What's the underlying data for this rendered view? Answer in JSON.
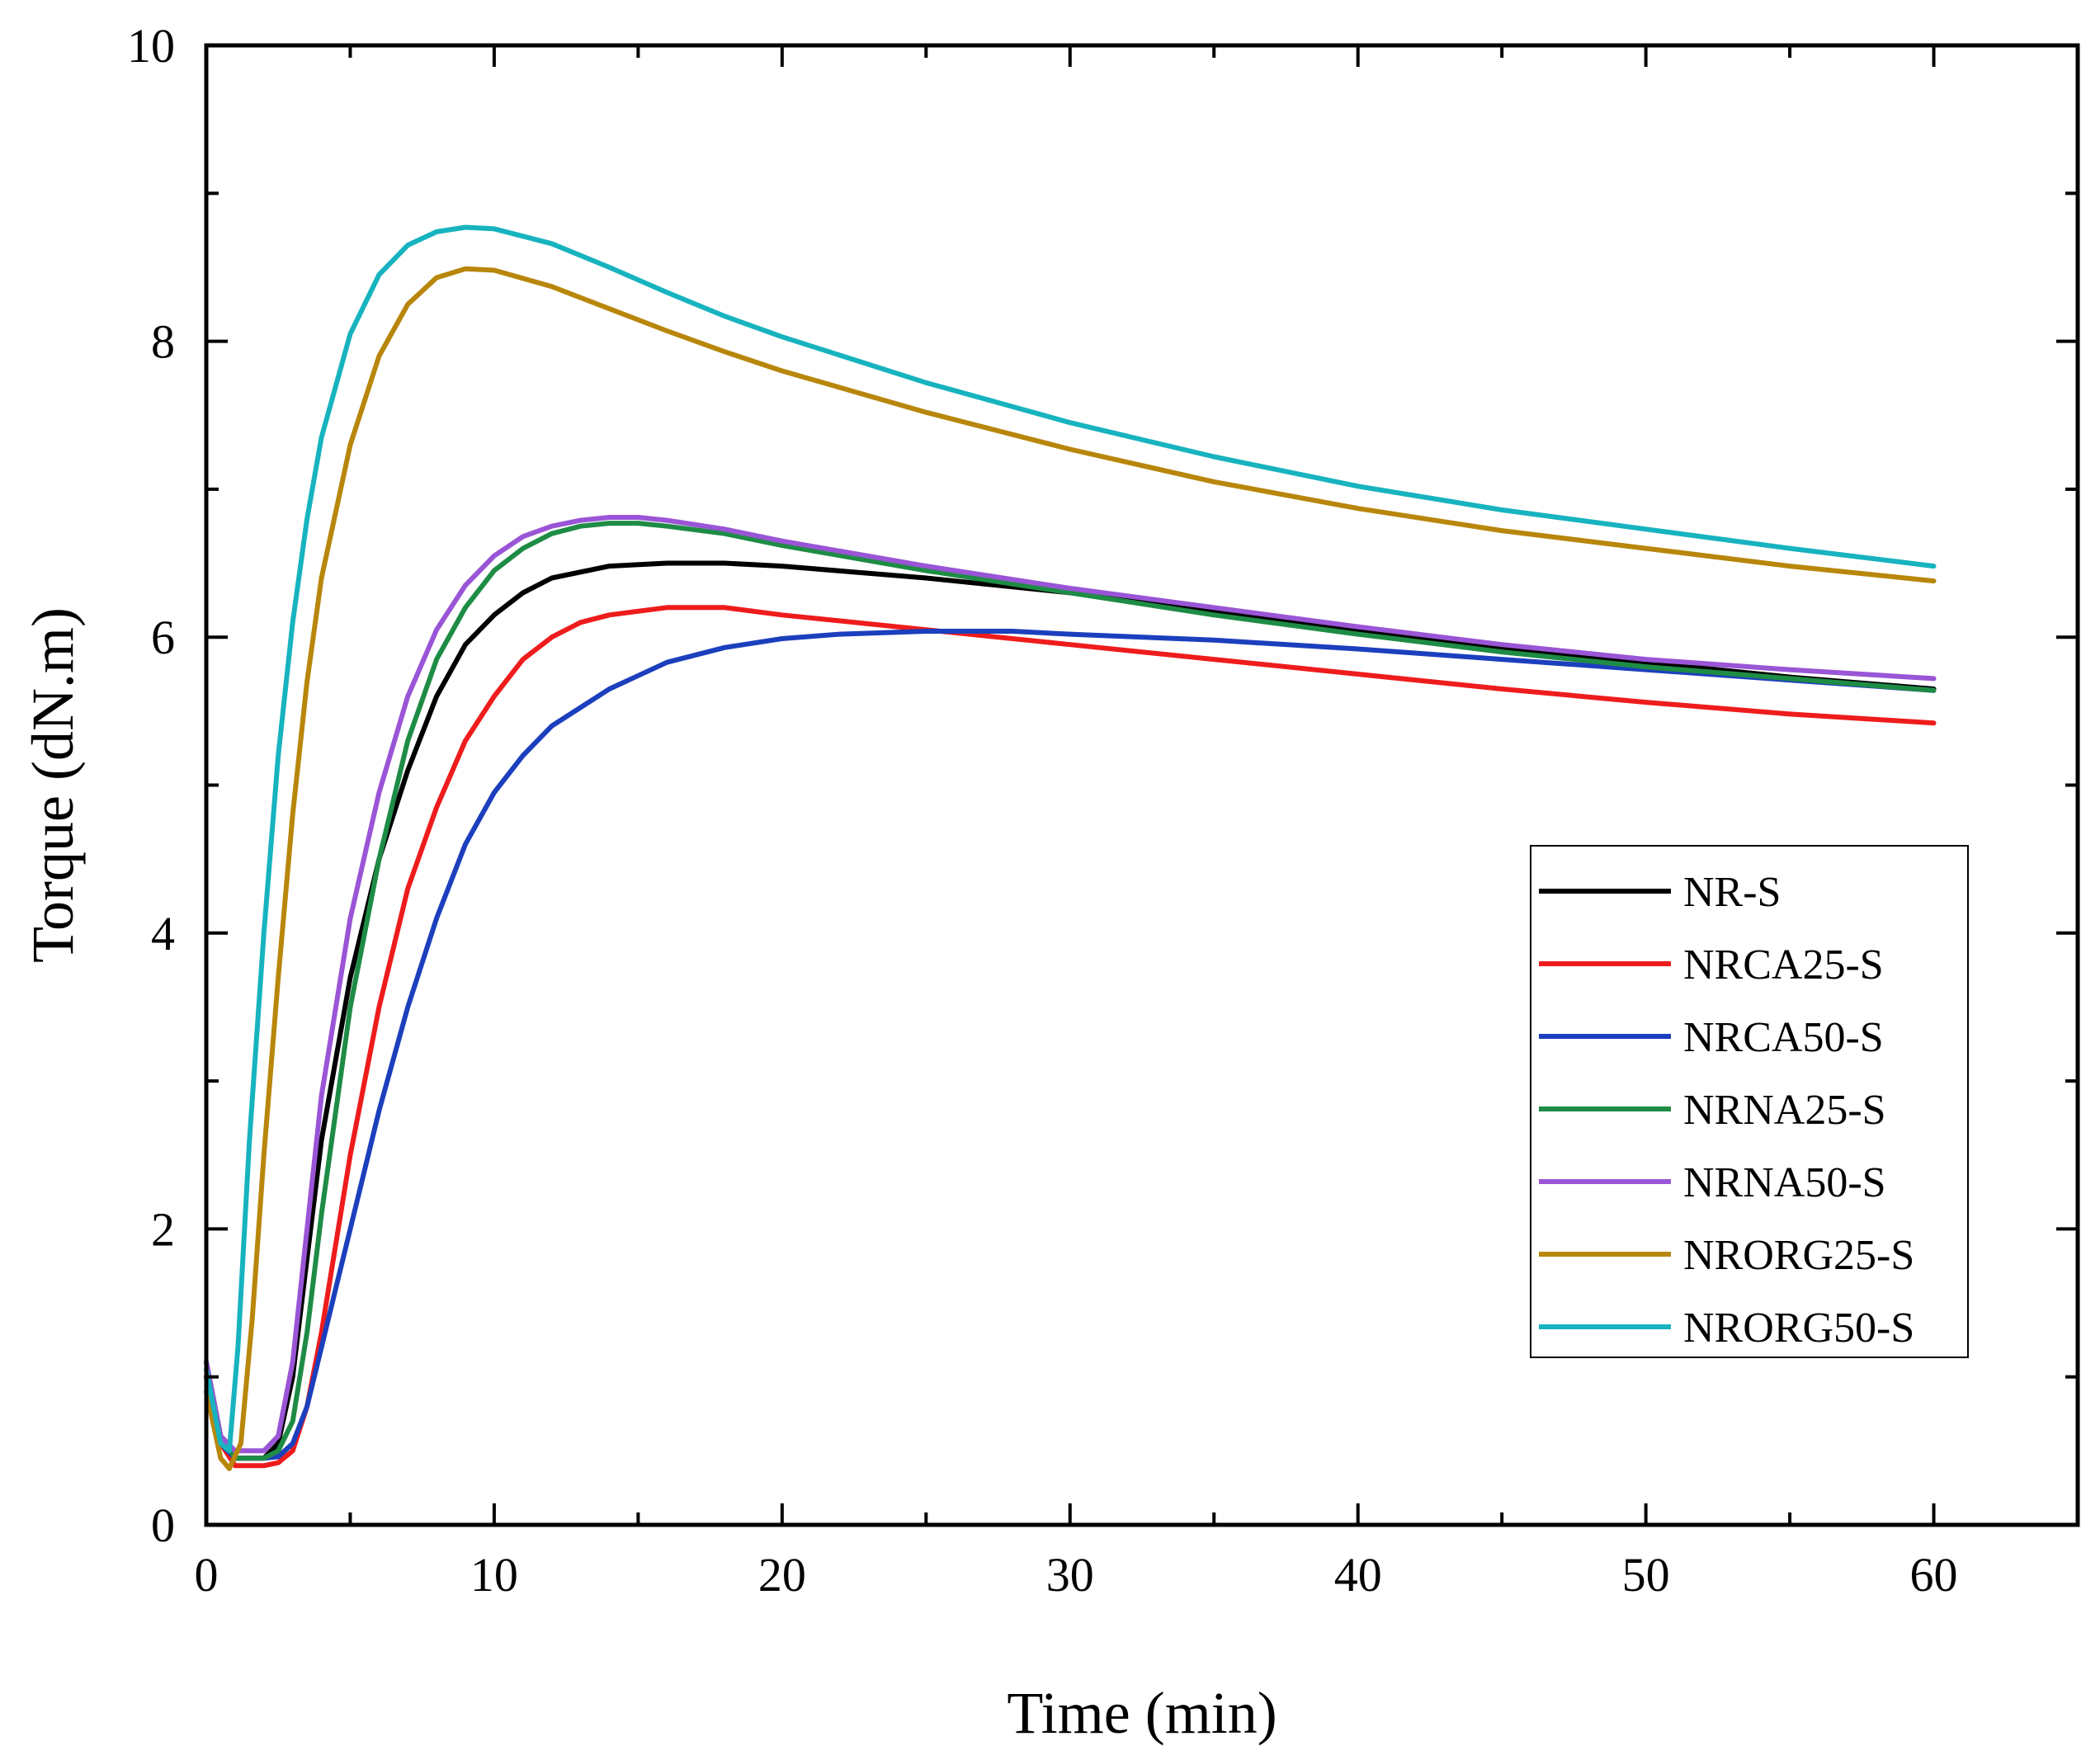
{
  "chart_data": {
    "type": "line",
    "xlabel": "Time (min)",
    "ylabel": "Torque (dN.m)",
    "xlim": [
      0,
      65
    ],
    "ylim": [
      0,
      10
    ],
    "xticks": [
      "0",
      "10",
      "20",
      "30",
      "40",
      "50",
      "60"
    ],
    "yticks": [
      "0",
      "2",
      "4",
      "6",
      "8",
      "10"
    ],
    "grid": false,
    "legend_position": "lower-right",
    "series": [
      {
        "name": "NR-S",
        "color": "#000000",
        "points": [
          [
            0,
            1.1
          ],
          [
            0.5,
            0.6
          ],
          [
            1,
            0.45
          ],
          [
            2,
            0.45
          ],
          [
            2.5,
            0.55
          ],
          [
            3,
            1.0
          ],
          [
            3.5,
            1.8
          ],
          [
            4,
            2.6
          ],
          [
            5,
            3.7
          ],
          [
            6,
            4.5
          ],
          [
            7,
            5.1
          ],
          [
            8,
            5.6
          ],
          [
            9,
            5.95
          ],
          [
            10,
            6.15
          ],
          [
            11,
            6.3
          ],
          [
            12,
            6.4
          ],
          [
            14,
            6.48
          ],
          [
            16,
            6.5
          ],
          [
            18,
            6.5
          ],
          [
            20,
            6.48
          ],
          [
            25,
            6.4
          ],
          [
            30,
            6.3
          ],
          [
            35,
            6.18
          ],
          [
            40,
            6.05
          ],
          [
            45,
            5.93
          ],
          [
            50,
            5.83
          ],
          [
            55,
            5.73
          ],
          [
            60,
            5.65
          ]
        ]
      },
      {
        "name": "NRCA25-S",
        "color": "#ee1c1c",
        "points": [
          [
            0,
            1.0
          ],
          [
            0.5,
            0.55
          ],
          [
            1,
            0.4
          ],
          [
            2,
            0.4
          ],
          [
            2.5,
            0.42
          ],
          [
            3,
            0.5
          ],
          [
            3.5,
            0.8
          ],
          [
            4,
            1.3
          ],
          [
            4.5,
            1.9
          ],
          [
            5,
            2.5
          ],
          [
            6,
            3.5
          ],
          [
            7,
            4.3
          ],
          [
            8,
            4.85
          ],
          [
            9,
            5.3
          ],
          [
            10,
            5.6
          ],
          [
            11,
            5.85
          ],
          [
            12,
            6.0
          ],
          [
            13,
            6.1
          ],
          [
            14,
            6.15
          ],
          [
            16,
            6.2
          ],
          [
            18,
            6.2
          ],
          [
            20,
            6.15
          ],
          [
            25,
            6.05
          ],
          [
            30,
            5.95
          ],
          [
            35,
            5.85
          ],
          [
            40,
            5.75
          ],
          [
            45,
            5.65
          ],
          [
            50,
            5.56
          ],
          [
            55,
            5.48
          ],
          [
            60,
            5.42
          ]
        ]
      },
      {
        "name": "NRCA50-S",
        "color": "#1c3fbd",
        "points": [
          [
            0,
            1.0
          ],
          [
            0.5,
            0.55
          ],
          [
            1,
            0.45
          ],
          [
            2,
            0.45
          ],
          [
            2.5,
            0.46
          ],
          [
            3,
            0.55
          ],
          [
            3.5,
            0.8
          ],
          [
            4,
            1.2
          ],
          [
            4.5,
            1.6
          ],
          [
            5,
            2.0
          ],
          [
            6,
            2.8
          ],
          [
            7,
            3.5
          ],
          [
            8,
            4.1
          ],
          [
            9,
            4.6
          ],
          [
            10,
            4.95
          ],
          [
            11,
            5.2
          ],
          [
            12,
            5.4
          ],
          [
            14,
            5.65
          ],
          [
            16,
            5.83
          ],
          [
            18,
            5.93
          ],
          [
            20,
            5.99
          ],
          [
            22,
            6.02
          ],
          [
            25,
            6.04
          ],
          [
            28,
            6.04
          ],
          [
            30,
            6.02
          ],
          [
            35,
            5.98
          ],
          [
            40,
            5.92
          ],
          [
            45,
            5.85
          ],
          [
            50,
            5.78
          ],
          [
            55,
            5.71
          ],
          [
            60,
            5.64
          ]
        ]
      },
      {
        "name": "NRNA25-S",
        "color": "#1e8c45",
        "points": [
          [
            0,
            1.1
          ],
          [
            0.5,
            0.6
          ],
          [
            1,
            0.45
          ],
          [
            2,
            0.45
          ],
          [
            2.5,
            0.5
          ],
          [
            3,
            0.7
          ],
          [
            3.5,
            1.3
          ],
          [
            4,
            2.1
          ],
          [
            5,
            3.5
          ],
          [
            6,
            4.5
          ],
          [
            7,
            5.3
          ],
          [
            8,
            5.85
          ],
          [
            9,
            6.2
          ],
          [
            10,
            6.45
          ],
          [
            11,
            6.6
          ],
          [
            12,
            6.7
          ],
          [
            13,
            6.75
          ],
          [
            14,
            6.77
          ],
          [
            15,
            6.77
          ],
          [
            16,
            6.75
          ],
          [
            18,
            6.7
          ],
          [
            20,
            6.62
          ],
          [
            25,
            6.45
          ],
          [
            30,
            6.3
          ],
          [
            35,
            6.15
          ],
          [
            40,
            6.02
          ],
          [
            45,
            5.9
          ],
          [
            50,
            5.8
          ],
          [
            55,
            5.72
          ],
          [
            60,
            5.64
          ]
        ]
      },
      {
        "name": "NRNA50-S",
        "color": "#9a55d6",
        "points": [
          [
            0,
            1.1
          ],
          [
            0.5,
            0.6
          ],
          [
            1,
            0.5
          ],
          [
            2,
            0.5
          ],
          [
            2.5,
            0.6
          ],
          [
            3,
            1.1
          ],
          [
            3.5,
            2.0
          ],
          [
            4,
            2.9
          ],
          [
            5,
            4.1
          ],
          [
            6,
            4.95
          ],
          [
            7,
            5.6
          ],
          [
            8,
            6.05
          ],
          [
            9,
            6.35
          ],
          [
            10,
            6.55
          ],
          [
            11,
            6.68
          ],
          [
            12,
            6.75
          ],
          [
            13,
            6.79
          ],
          [
            14,
            6.81
          ],
          [
            15,
            6.81
          ],
          [
            16,
            6.79
          ],
          [
            18,
            6.73
          ],
          [
            20,
            6.65
          ],
          [
            25,
            6.48
          ],
          [
            30,
            6.33
          ],
          [
            35,
            6.2
          ],
          [
            40,
            6.07
          ],
          [
            45,
            5.95
          ],
          [
            50,
            5.85
          ],
          [
            55,
            5.78
          ],
          [
            60,
            5.72
          ]
        ]
      },
      {
        "name": "NRORG25-S",
        "color": "#b8860b",
        "points": [
          [
            0,
            0.9
          ],
          [
            0.5,
            0.45
          ],
          [
            0.8,
            0.38
          ],
          [
            1.2,
            0.55
          ],
          [
            1.6,
            1.4
          ],
          [
            2,
            2.5
          ],
          [
            2.5,
            3.7
          ],
          [
            3,
            4.8
          ],
          [
            3.5,
            5.7
          ],
          [
            4,
            6.4
          ],
          [
            5,
            7.3
          ],
          [
            6,
            7.9
          ],
          [
            7,
            8.25
          ],
          [
            8,
            8.43
          ],
          [
            9,
            8.49
          ],
          [
            10,
            8.48
          ],
          [
            12,
            8.37
          ],
          [
            14,
            8.22
          ],
          [
            16,
            8.07
          ],
          [
            18,
            7.93
          ],
          [
            20,
            7.8
          ],
          [
            25,
            7.52
          ],
          [
            30,
            7.27
          ],
          [
            35,
            7.05
          ],
          [
            40,
            6.87
          ],
          [
            45,
            6.72
          ],
          [
            50,
            6.6
          ],
          [
            55,
            6.48
          ],
          [
            60,
            6.38
          ]
        ]
      },
      {
        "name": "NRORG50-S",
        "color": "#17b3bf",
        "points": [
          [
            0,
            1.05
          ],
          [
            0.5,
            0.55
          ],
          [
            0.8,
            0.5
          ],
          [
            1.1,
            1.2
          ],
          [
            1.5,
            2.6
          ],
          [
            2,
            4.0
          ],
          [
            2.5,
            5.2
          ],
          [
            3,
            6.1
          ],
          [
            3.5,
            6.8
          ],
          [
            4,
            7.35
          ],
          [
            5,
            8.05
          ],
          [
            6,
            8.45
          ],
          [
            7,
            8.65
          ],
          [
            8,
            8.74
          ],
          [
            9,
            8.77
          ],
          [
            10,
            8.76
          ],
          [
            12,
            8.66
          ],
          [
            14,
            8.5
          ],
          [
            16,
            8.33
          ],
          [
            18,
            8.17
          ],
          [
            20,
            8.03
          ],
          [
            25,
            7.72
          ],
          [
            30,
            7.45
          ],
          [
            35,
            7.22
          ],
          [
            40,
            7.02
          ],
          [
            45,
            6.86
          ],
          [
            50,
            6.73
          ],
          [
            55,
            6.6
          ],
          [
            60,
            6.48
          ]
        ]
      }
    ]
  }
}
